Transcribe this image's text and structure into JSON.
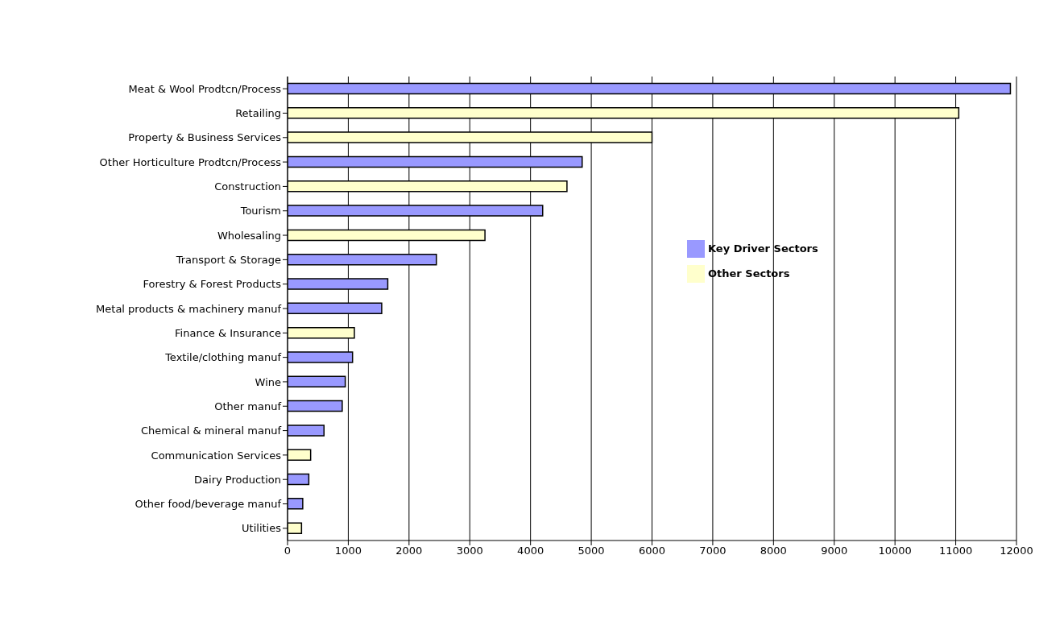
{
  "chart_data": {
    "type": "bar",
    "orientation": "horizontal",
    "stacked": true,
    "categories": [
      "Meat & Wool Prodtcn/Process",
      "Retailing",
      "Property & Business Services",
      "Other Horticulture Prodtcn/Process",
      "Construction",
      "Tourism",
      "Wholesaling",
      "Transport & Storage",
      "Forestry & Forest Products",
      "Metal products & machinery manuf",
      "Finance & Insurance",
      "Textile/clothing manuf",
      "Wine",
      "Other manuf",
      "Chemical & mineral manuf",
      "Communication Services",
      "Dairy Production",
      "Other food/beverage manuf",
      "Utilities"
    ],
    "series": [
      {
        "name": "Key Driver Sectors",
        "color": "#9999ff",
        "values": [
          11900,
          null,
          null,
          4850,
          null,
          4200,
          null,
          2450,
          1650,
          1550,
          null,
          1070,
          950,
          900,
          600,
          null,
          350,
          250,
          null
        ]
      },
      {
        "name": "Other Sectors",
        "color": "#ffffcc",
        "values": [
          null,
          11050,
          6000,
          null,
          4600,
          null,
          3250,
          null,
          null,
          null,
          1100,
          null,
          null,
          null,
          null,
          380,
          null,
          null,
          230
        ]
      }
    ],
    "xlim": [
      0,
      12000
    ],
    "xticks": [
      0,
      1000,
      2000,
      3000,
      4000,
      5000,
      6000,
      7000,
      8000,
      9000,
      10000,
      11000,
      12000
    ],
    "grid": "x",
    "legend": "right"
  }
}
